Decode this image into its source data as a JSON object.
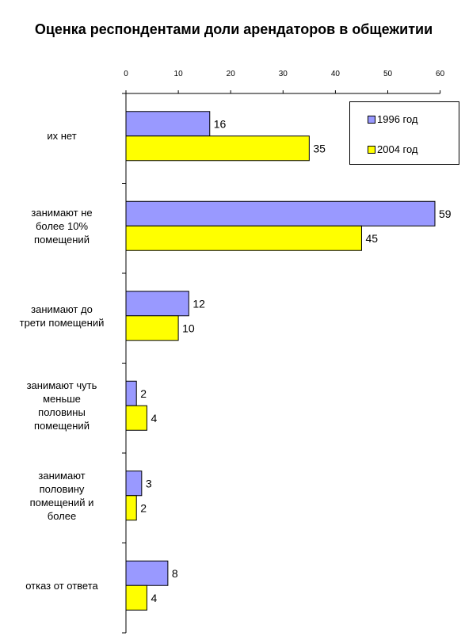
{
  "chart_data": {
    "type": "bar",
    "orientation": "horizontal",
    "title": "Оценка респондентами доли арендаторов в общежитии",
    "categories": [
      "их нет",
      "занимают не более 10% помещений",
      "занимают до трети помещений",
      "занимают чуть меньше половины помещений",
      "занимают половину помещений и более",
      "отказ от ответа"
    ],
    "category_lines": [
      [
        "их нет"
      ],
      [
        "занимают не",
        "более 10%",
        "помещений"
      ],
      [
        "занимают до",
        "трети помещений"
      ],
      [
        "занимают чуть",
        "меньше",
        "половины",
        "помещений"
      ],
      [
        "занимают",
        "половину",
        "помещений и",
        "более"
      ],
      [
        "отказ от ответа"
      ]
    ],
    "series": [
      {
        "name": "1996 год",
        "values": [
          16,
          59,
          12,
          2,
          3,
          8
        ],
        "color": "#9999FF"
      },
      {
        "name": "2004 год",
        "values": [
          35,
          45,
          10,
          4,
          2,
          4
        ],
        "color": "#FFFF00"
      }
    ],
    "xlim": [
      0,
      60
    ],
    "x_ticks": [
      0,
      10,
      20,
      30,
      40,
      50,
      60
    ],
    "x_axis_position": "top",
    "grid": false,
    "legend_position": "top-right",
    "data_labels": true
  }
}
